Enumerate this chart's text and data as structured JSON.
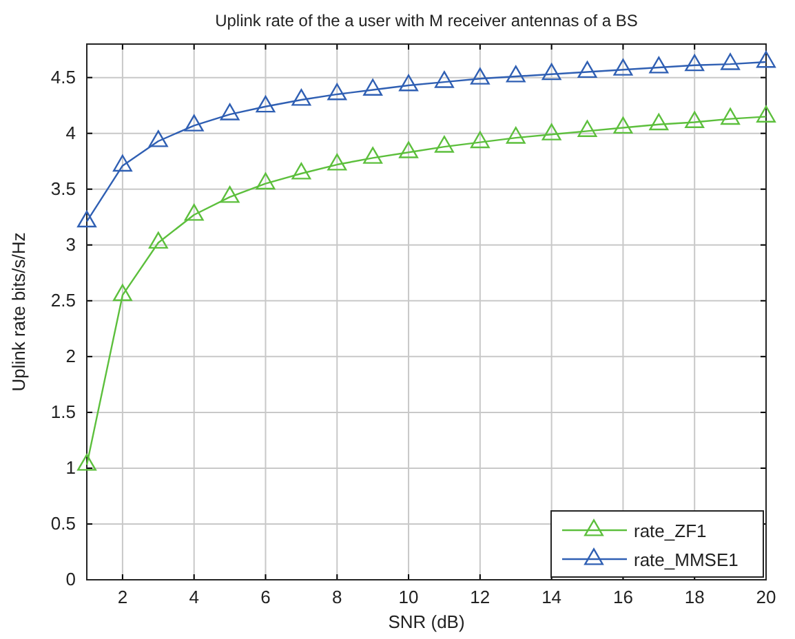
{
  "chart_data": {
    "type": "line",
    "title": "Uplink rate of the a user with M receiver antennas of a BS",
    "xlabel": "SNR (dB)",
    "ylabel": "Uplink rate bits/s/Hz",
    "x": [
      1,
      2,
      3,
      4,
      5,
      6,
      7,
      8,
      9,
      10,
      11,
      12,
      13,
      14,
      15,
      16,
      17,
      18,
      19,
      20
    ],
    "series": [
      {
        "name": "rate_ZF1",
        "color": "#5cbf3c",
        "values": [
          1.03,
          2.55,
          3.02,
          3.27,
          3.43,
          3.55,
          3.64,
          3.72,
          3.78,
          3.83,
          3.88,
          3.92,
          3.96,
          3.99,
          4.02,
          4.05,
          4.08,
          4.1,
          4.13,
          4.15
        ]
      },
      {
        "name": "rate_MMSE1",
        "color": "#2f5fb3",
        "values": [
          3.21,
          3.71,
          3.93,
          4.07,
          4.17,
          4.24,
          4.3,
          4.35,
          4.39,
          4.43,
          4.46,
          4.49,
          4.51,
          4.53,
          4.55,
          4.57,
          4.59,
          4.61,
          4.62,
          4.64
        ]
      }
    ],
    "xlim": [
      1,
      20
    ],
    "xticks": [
      2,
      4,
      6,
      8,
      10,
      12,
      14,
      16,
      18,
      20
    ],
    "ylim": [
      0,
      4.8
    ],
    "yticks": [
      0,
      0.5,
      1,
      1.5,
      2,
      2.5,
      3,
      3.5,
      4,
      4.5
    ],
    "grid": true,
    "legend": "bottom right",
    "marker": "triangle",
    "line_style": "solid"
  }
}
